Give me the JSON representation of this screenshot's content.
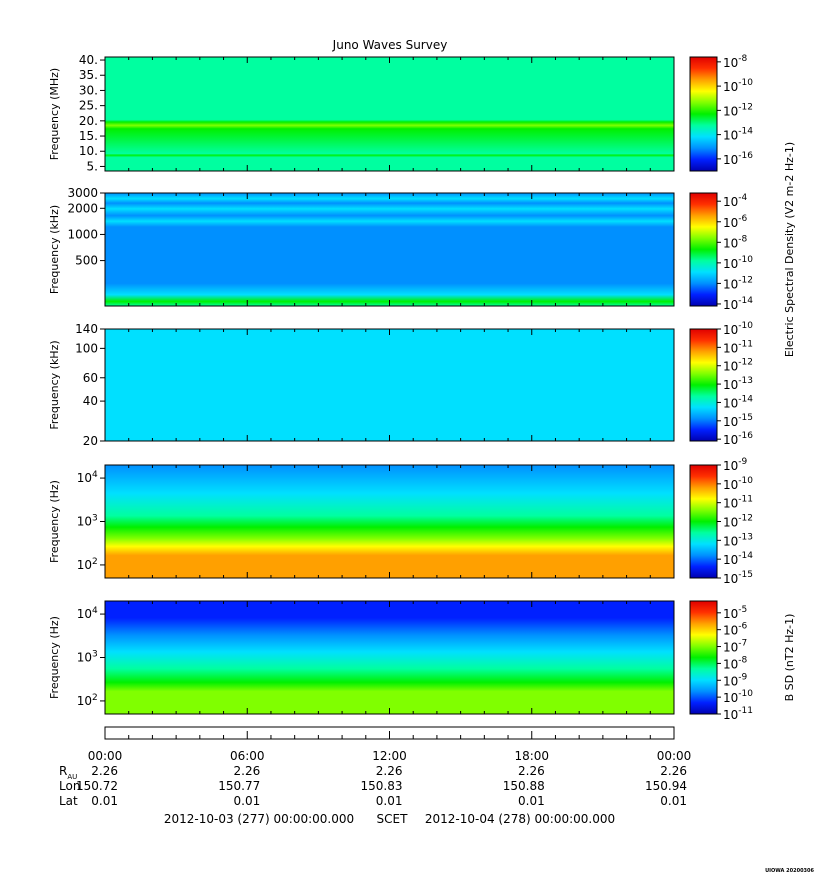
{
  "title": "Juno Waves Survey",
  "footer_stamp": "UIOWA 20200306",
  "colors": {
    "colormap": [
      "#0000b0",
      "#0020ff",
      "#0090ff",
      "#00e0ff",
      "#00ffa0",
      "#00f000",
      "#80ff00",
      "#ffff00",
      "#ffa000",
      "#ff3000",
      "#e00000"
    ]
  },
  "chart_data": [
    {
      "type": "heatmap",
      "ylabel": "Frequency (MHz)",
      "yscale": "linear",
      "ylim": [
        3.5,
        41
      ],
      "yticks": [
        "40.",
        "35.",
        "30.",
        "25.",
        "20.",
        "15.",
        "10.",
        "5."
      ],
      "ytick_values": [
        40,
        35,
        30,
        25,
        20,
        15,
        10,
        5
      ],
      "colorbar": {
        "ticks": [
          "10-8",
          "10-10",
          "10-12",
          "10-14",
          "10-16"
        ],
        "exponents": [
          -8,
          -10,
          -12,
          -14,
          -16
        ],
        "range": [
          -17,
          -7.6
        ]
      },
      "colorbar_label": ""
    },
    {
      "type": "heatmap",
      "ylabel": "Frequency (kHz)",
      "yscale": "log",
      "ylim": [
        150,
        3000
      ],
      "yticks": [
        "3000",
        "2000",
        "1000",
        "500"
      ],
      "ytick_values": [
        3000,
        2000,
        1000,
        500
      ],
      "colorbar": {
        "ticks": [
          "10-4",
          "10-6",
          "10-8",
          "10-10",
          "10-12",
          "10-14"
        ],
        "exponents": [
          -4,
          -6,
          -8,
          -10,
          -12,
          -14
        ],
        "range": [
          -14.2,
          -3.2
        ]
      },
      "colorbar_label": "Electric Spectral Density (V2 m-2 Hz-1)"
    },
    {
      "type": "heatmap",
      "ylabel": "Frequency (kHz)",
      "yscale": "log",
      "ylim": [
        20,
        140
      ],
      "yticks": [
        "140",
        "100",
        "60",
        "40",
        "20"
      ],
      "ytick_values": [
        140,
        100,
        60,
        40,
        20
      ],
      "colorbar": {
        "ticks": [
          "10-10",
          "10-11",
          "10-12",
          "10-13",
          "10-14",
          "10-15",
          "10-16"
        ],
        "exponents": [
          -10,
          -11,
          -12,
          -13,
          -14,
          -15,
          -16
        ],
        "range": [
          -16.1,
          -10
        ]
      },
      "colorbar_label": ""
    },
    {
      "type": "heatmap",
      "ylabel": "Frequency (Hz)",
      "yscale": "log",
      "ylim": [
        50,
        20000
      ],
      "yticks": [
        "10",
        "10",
        "10"
      ],
      "ytick_exps": [
        "4",
        "3",
        "2"
      ],
      "ytick_values": [
        10000,
        1000,
        100
      ],
      "colorbar": {
        "ticks": [
          "10-9",
          "10-10",
          "10-11",
          "10-12",
          "10-13",
          "10-14",
          "10-15"
        ],
        "exponents": [
          -9,
          -10,
          -11,
          -12,
          -13,
          -14,
          -15
        ],
        "range": [
          -15,
          -9
        ]
      },
      "colorbar_label": ""
    },
    {
      "type": "heatmap",
      "ylabel": "Frequency (Hz)",
      "yscale": "log",
      "ylim": [
        50,
        20000
      ],
      "yticks": [
        "10",
        "10",
        "10"
      ],
      "ytick_exps": [
        "4",
        "3",
        "2"
      ],
      "ytick_values": [
        10000,
        1000,
        100
      ],
      "colorbar": {
        "ticks": [
          "10-5",
          "10-6",
          "10-7",
          "10-8",
          "10-9",
          "10-10",
          "10-11"
        ],
        "exponents": [
          -5,
          -6,
          -7,
          -8,
          -9,
          -10,
          -11
        ],
        "range": [
          -11,
          -4.3
        ]
      },
      "colorbar_label": "B SD (nT2 Hz-1)"
    }
  ],
  "time_axis": {
    "ticks": [
      "00:00",
      "06:00",
      "12:00",
      "18:00",
      "00:00"
    ],
    "tick_hours": [
      0,
      6,
      12,
      18,
      24
    ],
    "range_hours": [
      0,
      24
    ],
    "rows": [
      {
        "label": "RAU",
        "values": [
          "2.26",
          "2.26",
          "2.26",
          "2.26",
          "2.26"
        ]
      },
      {
        "label": "Lon",
        "values": [
          "150.72",
          "150.77",
          "150.83",
          "150.88",
          "150.94"
        ]
      },
      {
        "label": "Lat",
        "values": [
          "0.01",
          "0.01",
          "0.01",
          "0.01",
          "0.01"
        ]
      }
    ]
  },
  "date_line": {
    "start": "2012-10-03 (277) 00:00:00.000",
    "mid": "SCET",
    "end": "2012-10-04 (278) 00:00:00.000"
  }
}
